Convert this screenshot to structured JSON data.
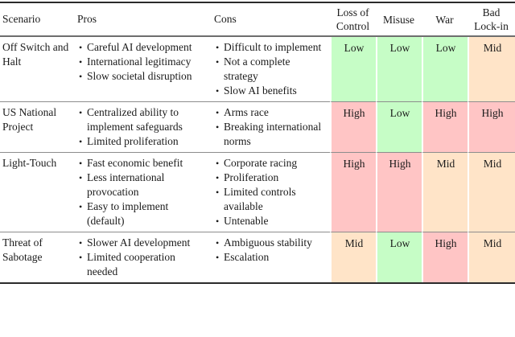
{
  "table": {
    "headers": [
      "Scenario",
      "Pros",
      "Cons",
      "Loss of Control",
      "Misuse",
      "War",
      "Bad Lock-in"
    ],
    "level_colors": {
      "low": "#c6fdc6",
      "mid": "#ffe4c8",
      "high": "#ffc5c5"
    },
    "rows": [
      {
        "scenario": "Off Switch and Halt",
        "pros": [
          "Careful AI development",
          "International legitimacy",
          "Slow societal disruption"
        ],
        "cons": [
          "Difficult to implement",
          "Not a complete strategy",
          "Slow AI benefits"
        ],
        "ratings": [
          "Low",
          "Low",
          "Low",
          "Mid"
        ]
      },
      {
        "scenario": "US National Project",
        "pros": [
          "Centralized ability to implement safeguards",
          "Limited proliferation"
        ],
        "cons": [
          "Arms race",
          "Breaking international norms"
        ],
        "ratings": [
          "High",
          "Low",
          "High",
          "High"
        ]
      },
      {
        "scenario": "Light-Touch",
        "pros": [
          "Fast economic benefit",
          "Less international provocation",
          "Easy to implement (default)"
        ],
        "cons": [
          "Corporate racing",
          "Proliferation",
          "Limited controls available",
          "Untenable"
        ],
        "ratings": [
          "High",
          "High",
          "Mid",
          "Mid"
        ]
      },
      {
        "scenario": "Threat of Sabotage",
        "pros": [
          "Slower AI development",
          "Limited cooperation needed"
        ],
        "cons": [
          "Ambiguous stability",
          "Escalation"
        ],
        "ratings": [
          "Mid",
          "Low",
          "High",
          "Mid"
        ]
      }
    ]
  }
}
